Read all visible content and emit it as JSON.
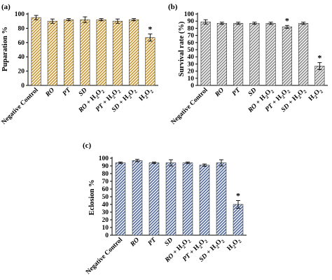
{
  "chart_data": [
    {
      "panel": "(a)",
      "type": "bar",
      "ylabel": "Puparation %",
      "ylim": [
        0,
        100
      ],
      "yticks": [
        "0",
        "20",
        "40",
        "60",
        "80",
        "100"
      ],
      "grid": false,
      "categories": [
        "Negative Control",
        "RO",
        "PT",
        "SD",
        "RO + H2O2",
        "PT + H2O2",
        "SD + H2O2",
        "H2O2"
      ],
      "values": [
        95,
        90,
        92,
        92,
        92,
        90,
        92,
        67
      ],
      "errors": [
        3,
        3,
        1.5,
        4,
        1.5,
        3,
        1.5,
        5
      ],
      "significance": [
        "",
        "",
        "",
        "",
        "",
        "",
        "",
        "*"
      ],
      "color": "#c8962e",
      "hatch": "diagonal"
    },
    {
      "panel": "(b)",
      "type": "bar",
      "ylabel": "Survival rate (%)",
      "ylim": [
        0,
        100
      ],
      "yticks": [
        "0",
        "10",
        "20",
        "30",
        "40",
        "50",
        "60",
        "70",
        "80",
        "90",
        "100"
      ],
      "grid": false,
      "categories": [
        "Negative Control",
        "RO",
        "PT",
        "SD",
        "RO + H2O2",
        "PT + H2O2",
        "SD + H2O2",
        "H2O2"
      ],
      "values": [
        89,
        87,
        87,
        87,
        87,
        82,
        87,
        27
      ],
      "errors": [
        3,
        1.5,
        1.5,
        1.5,
        1.5,
        2,
        1.5,
        5
      ],
      "significance": [
        "",
        "",
        "",
        "",
        "",
        "*",
        "",
        "*"
      ],
      "color": "#b0b0b0",
      "hatch": "diagonal"
    },
    {
      "panel": "(c)",
      "type": "bar",
      "ylabel": "Eclosion %",
      "ylim": [
        0,
        100
      ],
      "yticks": [
        "0",
        "10",
        "20",
        "30",
        "40",
        "50",
        "60",
        "70",
        "80",
        "90",
        "100"
      ],
      "grid": false,
      "categories": [
        "Negative Control",
        "RO",
        "PT",
        "SD",
        "RO + H2O2",
        "PT + H2O2",
        "SD + H2O2",
        "H2O2"
      ],
      "values": [
        94,
        97,
        94,
        94,
        94,
        91,
        94,
        40
      ],
      "errors": [
        1,
        1.5,
        1,
        4,
        1,
        1.5,
        4,
        5
      ],
      "significance": [
        "",
        "",
        "",
        "",
        "",
        "",
        "",
        "*"
      ],
      "color": "#7890b8",
      "hatch": "diagonal"
    }
  ]
}
